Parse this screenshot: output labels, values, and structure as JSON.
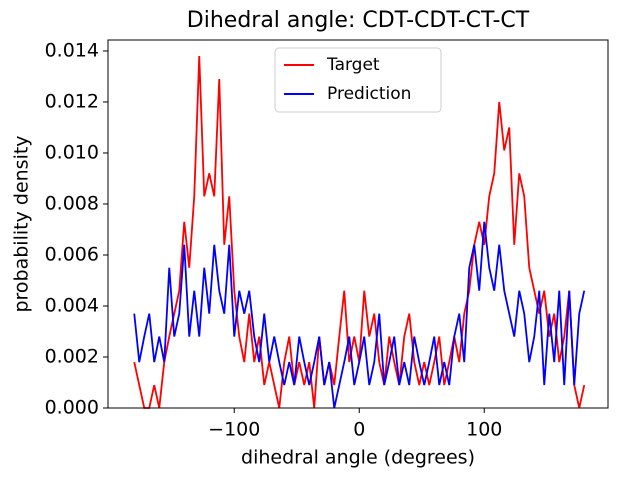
{
  "chart_data": {
    "type": "line",
    "title": "Dihedral angle: CDT-CDT-CT-CT",
    "xlabel": "dihedral angle (degrees)",
    "ylabel": "probability density",
    "x": [
      -180,
      -176,
      -172,
      -168,
      -164,
      -160,
      -156,
      -152,
      -148,
      -144,
      -140,
      -136,
      -132,
      -128,
      -124,
      -120,
      -116,
      -112,
      -108,
      -104,
      -100,
      -96,
      -92,
      -88,
      -84,
      -80,
      -76,
      -72,
      -68,
      -64,
      -60,
      -56,
      -52,
      -48,
      -44,
      -40,
      -36,
      -32,
      -28,
      -24,
      -20,
      -16,
      -12,
      -8,
      -4,
      0,
      4,
      8,
      12,
      16,
      20,
      24,
      28,
      32,
      36,
      40,
      44,
      48,
      52,
      56,
      60,
      64,
      68,
      72,
      76,
      80,
      84,
      88,
      92,
      96,
      100,
      104,
      108,
      112,
      116,
      120,
      124,
      128,
      132,
      136,
      140,
      144,
      148,
      152,
      156,
      160,
      164,
      168,
      172,
      176,
      180
    ],
    "series": [
      {
        "name": "Target",
        "color": "#ff0000",
        "values": [
          0.0018,
          0.0009,
          0,
          0,
          0.0009,
          0,
          0.0018,
          0.0028,
          0.0037,
          0.0046,
          0.0073,
          0.0055,
          0.0083,
          0.0138,
          0.0083,
          0.0092,
          0.0083,
          0.0129,
          0.0064,
          0.0083,
          0.0046,
          0.0028,
          0.0018,
          0.0037,
          0.0018,
          0.0028,
          0.0009,
          0.0018,
          0.0009,
          0,
          0.0018,
          0.0028,
          0.0009,
          0.0018,
          0.0009,
          0.0018,
          0,
          0.0028,
          0.0009,
          0.0018,
          0.0009,
          0.0028,
          0.0046,
          0.0018,
          0.0028,
          0.0018,
          0.0046,
          0.0028,
          0.0037,
          0.0018,
          0.0009,
          0.0028,
          0.0018,
          0.0009,
          0.0028,
          0.0037,
          0.0018,
          0.0009,
          0.0018,
          0.0009,
          0.0018,
          0.0028,
          0.0009,
          0.0018,
          0.0028,
          0.0018,
          0.0037,
          0.0046,
          0.0064,
          0.0073,
          0.0064,
          0.0083,
          0.0092,
          0.012,
          0.0101,
          0.011,
          0.0064,
          0.0092,
          0.0083,
          0.0055,
          0.0046,
          0.0037,
          0.0046,
          0.0028,
          0.0037,
          0.0018,
          0.0028,
          0.0046,
          0.0009,
          0,
          0.0009
        ]
      },
      {
        "name": "Prediction",
        "color": "#0000ff",
        "values": [
          0.0037,
          0.0018,
          0.0028,
          0.0037,
          0.0018,
          0.0028,
          0.0018,
          0.0055,
          0.0028,
          0.0037,
          0.0064,
          0.0028,
          0.0046,
          0.0028,
          0.0055,
          0.0037,
          0.0064,
          0.0046,
          0.0037,
          0.0064,
          0.0028,
          0.0046,
          0.0037,
          0.0046,
          0.0028,
          0.0018,
          0.0037,
          0.0018,
          0.0028,
          0.0018,
          0.0009,
          0.0018,
          0.0009,
          0.0028,
          0.0018,
          0.0009,
          0.0018,
          0.0028,
          0.0009,
          0.0018,
          0,
          0.0009,
          0.0018,
          0.0028,
          0.0009,
          0.0018,
          0.0028,
          0.0009,
          0.0018,
          0.0037,
          0.0009,
          0.0018,
          0.0028,
          0.0009,
          0.0018,
          0.0009,
          0.0028,
          0.0018,
          0.0009,
          0.0018,
          0.0028,
          0.0009,
          0.0018,
          0.0009,
          0.0028,
          0.0037,
          0.0018,
          0.0055,
          0.0064,
          0.0046,
          0.0073,
          0.0055,
          0.0046,
          0.0064,
          0.0046,
          0.0037,
          0.0028,
          0.0046,
          0.0037,
          0.0018,
          0.0028,
          0.0046,
          0.0009,
          0.0037,
          0.0018,
          0.0046,
          0.0009,
          0.0046,
          0.0009,
          0.0037,
          0.0046
        ]
      }
    ],
    "xlim": [
      -201,
      199
    ],
    "ylim": [
      0,
      0.01443
    ],
    "xticks": [
      {
        "value": -100,
        "label": "−100"
      },
      0,
      100
    ],
    "yticks": [
      {
        "value": 0,
        "label": "0.000"
      },
      {
        "value": 0.002,
        "label": "0.002"
      },
      {
        "value": 0.004,
        "label": "0.004"
      },
      {
        "value": 0.006,
        "label": "0.006"
      },
      {
        "value": 0.008,
        "label": "0.008"
      },
      {
        "value": 0.01,
        "label": "0.010"
      },
      {
        "value": 0.012,
        "label": "0.012"
      },
      {
        "value": 0.014,
        "label": "0.014"
      }
    ],
    "legend": "upper center"
  }
}
